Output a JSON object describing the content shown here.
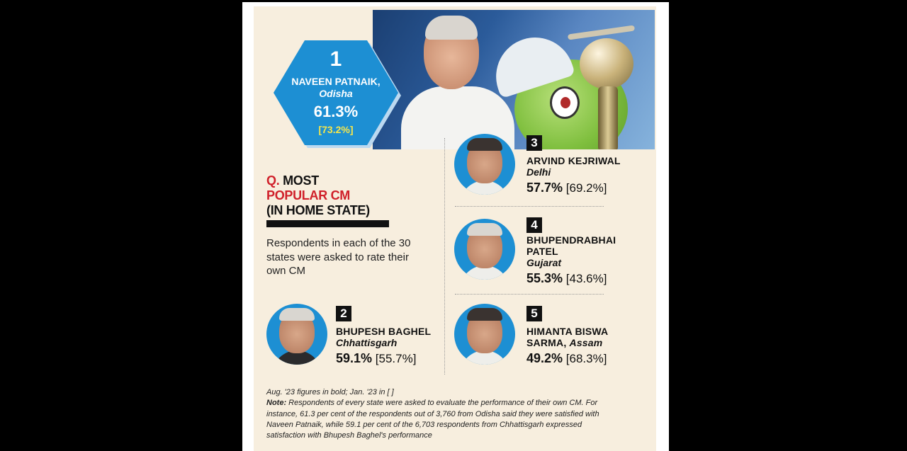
{
  "top": {
    "rank": "1",
    "name": "NAVEEN PATNAIK,",
    "state": "Odisha",
    "score": "61.3%",
    "previous": "[73.2%]"
  },
  "heading": {
    "q": "Q.",
    "line1": "MOST",
    "line2": "POPULAR CM",
    "line3": "(IN HOME STATE)"
  },
  "description": "Respondents in each of the 30 states were asked to rate their own CM",
  "entries": [
    {
      "rank": "2",
      "name": "BHUPESH BAGHEL",
      "state": "Chhattisgarh",
      "score": "59.1%",
      "previous": "[55.7%]"
    },
    {
      "rank": "3",
      "name": "ARVIND KEJRIWAL",
      "state": "Delhi",
      "score": "57.7%",
      "previous": "[69.2%]"
    },
    {
      "rank": "4",
      "name": "BHUPENDRABHAI",
      "name2": "PATEL",
      "state": "Gujarat",
      "score": "55.3%",
      "previous": "[43.6%]"
    },
    {
      "rank": "5",
      "name": "HIMANTA BISWA",
      "name2": "SARMA,",
      "state": "Assam",
      "score": "49.2%",
      "previous": "[68.3%]"
    }
  ],
  "footnote": {
    "legend": "Aug. '23 figures in bold; Jan. '23 in [ ]",
    "note_label": "Note:",
    "note_text": "Respondents of every state were asked to evaluate the performance of their own CM. For instance, 61.3 per cent of the respondents out of 3,760 from Odisha said they were satisfied with Naveen Patnaik, while 59.1 per cent of the 6,703 respondents from Chhattisgarh expressed satisfaction with Bhupesh Baghel's performance"
  },
  "colors": {
    "accent_blue": "#1d8fd3",
    "accent_red": "#d0202a",
    "highlight_yellow": "#f5e64c",
    "card_background": "#f7eede"
  }
}
